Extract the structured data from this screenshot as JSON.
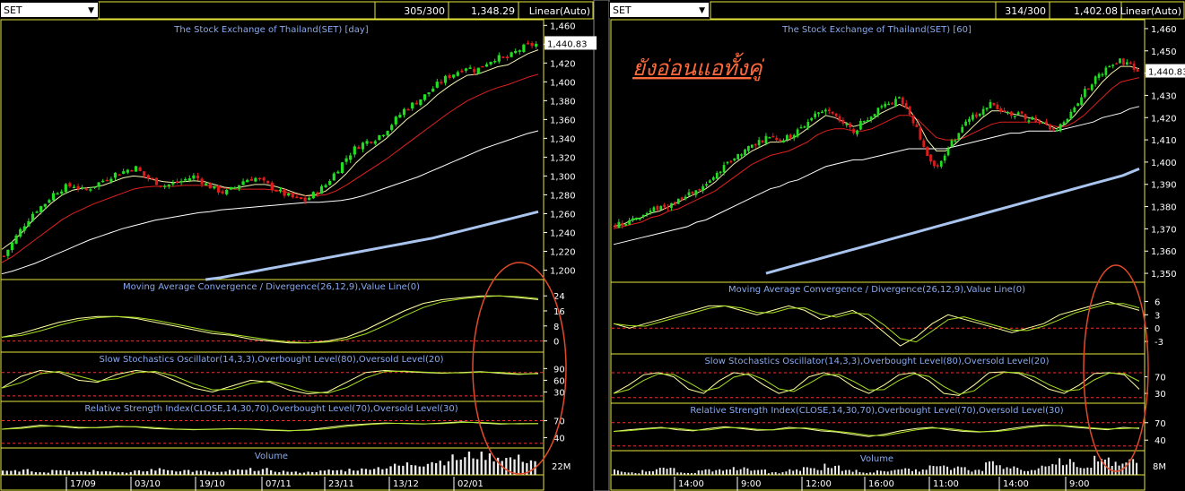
{
  "panels": [
    {
      "id": "day",
      "symbol": "SET",
      "count": "305/300",
      "price": "1,348.29",
      "scale": "Linear(Auto)",
      "title": "The Stock Exchange of Thailand(SET) [day]",
      "last_price_label": "1,440.83",
      "price_axis": {
        "ticks": [
          "1,460",
          "1,440",
          "1,420",
          "1,400",
          "1,380",
          "1,360",
          "1,340",
          "1,320",
          "1,300",
          "1,280",
          "1,260",
          "1,240",
          "1,220",
          "1,200"
        ],
        "ylim": [
          1190,
          1466
        ]
      },
      "indicators": {
        "macd": {
          "title": "Moving Average Convergence / Divergence(26,12,9),Value Line(0)",
          "ticks": [
            "24",
            "16",
            "8",
            "0"
          ]
        },
        "stoch": {
          "title": "Slow Stochastics Oscillator(14,3,3),Overbought Level(80),Oversold Level(20)",
          "ticks": [
            "90",
            "60",
            "30"
          ]
        },
        "rsi": {
          "title": "Relative Strength Index(CLOSE,14,30,70),Overbought Level(70),Oversold Level(30)",
          "ticks": [
            "70",
            "40"
          ]
        },
        "volume": {
          "title": "Volume",
          "ticks": [
            "22M"
          ]
        }
      },
      "date_ticks": [
        "17/09",
        "03/10",
        "19/10",
        "07/11",
        "23/11",
        "13/12",
        "02/01"
      ]
    },
    {
      "id": "60",
      "symbol": "SET",
      "count": "314/300",
      "price": "1,402.08",
      "scale": "Linear(Auto)",
      "title": "The Stock Exchange of Thailand(SET) [60]",
      "last_price_label": "1,440.83",
      "price_axis": {
        "ticks": [
          "1,460",
          "1,450",
          "1,440",
          "1,430",
          "1,420",
          "1,410",
          "1,400",
          "1,390",
          "1,380",
          "1,370",
          "1,360",
          "1,350"
        ],
        "ylim": [
          1346,
          1464
        ]
      },
      "indicators": {
        "macd": {
          "title": "Moving Average Convergence / Divergence(26,12,9),Value Line(0)",
          "ticks": [
            "6",
            "3",
            "0",
            "-3"
          ]
        },
        "stoch": {
          "title": "Slow Stochastics Oscillator(14,3,3),Overbought Level(80),Oversold Level(20)",
          "ticks": [
            "70",
            "30"
          ]
        },
        "rsi": {
          "title": "Relative Strength Index(CLOSE,14,30,70),Overbought Level(70),Oversold Level(30)",
          "ticks": [
            "70",
            "40"
          ]
        },
        "volume": {
          "title": "Volume",
          "ticks": [
            "8M"
          ]
        }
      },
      "date_ticks": [
        "14:00",
        "9:00",
        "12:00",
        "16:00",
        "11:00",
        "14:00",
        "9:00"
      ]
    }
  ],
  "annotation": {
    "text": "ยังอ่อนแอทั้งคู่",
    "color": "#ff6a3d"
  },
  "colors": {
    "up": "#22dd22",
    "down": "#e11b1b",
    "ema_fast": "#f2f2b0",
    "ema_mid": "#e02020",
    "ema_slow": "#ffffff",
    "ema_long": "#a9c4ee",
    "frame": "#e6e63c",
    "title": "#88a9ee",
    "circle": "#e04a2a"
  },
  "chart_data": [
    {
      "type": "candlestick",
      "title": "The Stock Exchange of Thailand(SET) [day]",
      "ylim": [
        1190,
        1466
      ],
      "x_ticks": [
        "17/09",
        "03/10",
        "19/10",
        "07/11",
        "23/11",
        "13/12",
        "02/01"
      ],
      "close_path": [
        1215,
        1232,
        1248,
        1262,
        1270,
        1282,
        1288,
        1290,
        1284,
        1290,
        1296,
        1302,
        1305,
        1310,
        1300,
        1294,
        1290,
        1292,
        1296,
        1300,
        1292,
        1286,
        1282,
        1288,
        1296,
        1298,
        1292,
        1286,
        1280,
        1276,
        1274,
        1282,
        1290,
        1304,
        1318,
        1330,
        1336,
        1340,
        1348,
        1360,
        1372,
        1378,
        1386,
        1396,
        1404,
        1410,
        1416,
        1412,
        1420,
        1426,
        1424,
        1432,
        1438,
        1440
      ],
      "ema_fast": [
        1222,
        1230,
        1240,
        1252,
        1262,
        1272,
        1280,
        1285,
        1287,
        1288,
        1290,
        1294,
        1298,
        1300,
        1299,
        1296,
        1294,
        1293,
        1294,
        1295,
        1294,
        1291,
        1288,
        1287,
        1289,
        1291,
        1291,
        1289,
        1286,
        1282,
        1279,
        1280,
        1284,
        1292,
        1302,
        1314,
        1324,
        1332,
        1340,
        1350,
        1360,
        1368,
        1376,
        1386,
        1394,
        1401,
        1407,
        1408,
        1412,
        1416,
        1418,
        1424,
        1430,
        1434
      ],
      "ema_mid": [
        1208,
        1214,
        1222,
        1230,
        1238,
        1246,
        1254,
        1260,
        1265,
        1270,
        1274,
        1278,
        1282,
        1286,
        1288,
        1289,
        1289,
        1289,
        1290,
        1290,
        1290,
        1289,
        1287,
        1286,
        1286,
        1286,
        1286,
        1285,
        1283,
        1281,
        1279,
        1279,
        1280,
        1284,
        1290,
        1297,
        1304,
        1311,
        1318,
        1326,
        1334,
        1342,
        1350,
        1358,
        1366,
        1373,
        1380,
        1385,
        1390,
        1394,
        1397,
        1401,
        1405,
        1408
      ],
      "ema_slow": [
        1196,
        1199,
        1203,
        1207,
        1212,
        1217,
        1222,
        1227,
        1232,
        1236,
        1240,
        1244,
        1247,
        1250,
        1253,
        1255,
        1257,
        1259,
        1261,
        1262,
        1264,
        1265,
        1266,
        1267,
        1268,
        1269,
        1270,
        1271,
        1272,
        1272,
        1273,
        1274,
        1276,
        1279,
        1283,
        1287,
        1291,
        1295,
        1299,
        1304,
        1309,
        1314,
        1319,
        1324,
        1329,
        1333,
        1337,
        1341,
        1345,
        1348
      ],
      "ema_long": [
        1190,
        1192,
        1195,
        1198,
        1201,
        1204,
        1207,
        1210,
        1213,
        1216,
        1219,
        1222,
        1225,
        1228,
        1231,
        1234,
        1238,
        1242,
        1246,
        1250,
        1254,
        1258,
        1262
      ],
      "macd": [
        2,
        4,
        7,
        10,
        12,
        13,
        13,
        12,
        10,
        8,
        6,
        4,
        3,
        1,
        0,
        -1,
        -1,
        0,
        2,
        6,
        11,
        16,
        20,
        22,
        23,
        24,
        24,
        23,
        22
      ],
      "stoch": [
        40,
        70,
        85,
        80,
        60,
        55,
        75,
        85,
        80,
        60,
        40,
        30,
        45,
        60,
        55,
        35,
        25,
        30,
        55,
        80,
        85,
        82,
        80,
        78,
        80,
        82,
        78,
        75,
        78
      ],
      "rsi": [
        55,
        58,
        62,
        60,
        57,
        58,
        60,
        59,
        56,
        55,
        54,
        55,
        56,
        55,
        53,
        52,
        54,
        58,
        62,
        64,
        66,
        65,
        64,
        66,
        68,
        66,
        64,
        65,
        65
      ],
      "volume": [
        4,
        5,
        3,
        6,
        4,
        5,
        3,
        4,
        6,
        5,
        4,
        3,
        5,
        6,
        4,
        3,
        4,
        5,
        6,
        8,
        10,
        12,
        15,
        18,
        22,
        20,
        18,
        16
      ]
    },
    {
      "type": "candlestick",
      "title": "The Stock Exchange of Thailand(SET) [60]",
      "ylim": [
        1346,
        1464
      ],
      "x_ticks": [
        "14:00",
        "9:00",
        "12:00",
        "16:00",
        "11:00",
        "14:00",
        "9:00"
      ],
      "close_path": [
        1372,
        1373,
        1375,
        1376,
        1378,
        1380,
        1381,
        1383,
        1385,
        1387,
        1390,
        1394,
        1398,
        1402,
        1405,
        1408,
        1410,
        1412,
        1410,
        1411,
        1414,
        1418,
        1422,
        1424,
        1420,
        1417,
        1414,
        1418,
        1422,
        1425,
        1427,
        1428,
        1424,
        1414,
        1402,
        1398,
        1404,
        1410,
        1416,
        1420,
        1424,
        1426,
        1424,
        1422,
        1421,
        1420,
        1418,
        1416,
        1414,
        1418,
        1424,
        1430,
        1436,
        1440,
        1444,
        1446,
        1444,
        1441
      ],
      "ema_fast": [
        1371,
        1372,
        1374,
        1375,
        1377,
        1378,
        1380,
        1382,
        1384,
        1386,
        1388,
        1391,
        1395,
        1399,
        1402,
        1405,
        1407,
        1409,
        1409,
        1410,
        1412,
        1415,
        1418,
        1421,
        1420,
        1418,
        1416,
        1417,
        1419,
        1422,
        1424,
        1426,
        1424,
        1418,
        1410,
        1405,
        1405,
        1408,
        1412,
        1416,
        1420,
        1423,
        1423,
        1422,
        1421,
        1420,
        1419,
        1417,
        1415,
        1417,
        1421,
        1426,
        1431,
        1436,
        1440,
        1443,
        1443,
        1442
      ],
      "ema_mid": [
        1370,
        1371,
        1372,
        1373,
        1375,
        1376,
        1378,
        1379,
        1381,
        1383,
        1385,
        1387,
        1390,
        1393,
        1396,
        1399,
        1401,
        1403,
        1404,
        1405,
        1407,
        1409,
        1412,
        1414,
        1415,
        1415,
        1414,
        1414,
        1415,
        1417,
        1419,
        1421,
        1421,
        1419,
        1415,
        1411,
        1410,
        1410,
        1411,
        1413,
        1415,
        1417,
        1418,
        1418,
        1418,
        1418,
        1418,
        1417,
        1416,
        1416,
        1418,
        1421,
        1425,
        1429,
        1433,
        1436,
        1437,
        1438
      ],
      "ema_slow": [
        1363,
        1364,
        1365,
        1366,
        1367,
        1368,
        1369,
        1370,
        1371,
        1373,
        1374,
        1376,
        1378,
        1380,
        1382,
        1384,
        1386,
        1388,
        1389,
        1391,
        1392,
        1394,
        1396,
        1398,
        1399,
        1400,
        1401,
        1401,
        1402,
        1403,
        1404,
        1405,
        1406,
        1406,
        1406,
        1406,
        1406,
        1407,
        1408,
        1409,
        1410,
        1411,
        1412,
        1413,
        1413,
        1414,
        1414,
        1414,
        1414,
        1415,
        1416,
        1417,
        1418,
        1420,
        1421,
        1422,
        1424,
        1425
      ],
      "ema_long": [
        1350,
        1352,
        1354,
        1356,
        1358,
        1360,
        1362,
        1364,
        1366,
        1368,
        1370,
        1372,
        1374,
        1376,
        1378,
        1380,
        1382,
        1384,
        1386,
        1388,
        1390,
        1392,
        1394,
        1397
      ],
      "macd": [
        1,
        0,
        1,
        2,
        3,
        4,
        5,
        5,
        4,
        3,
        4,
        5,
        4,
        2,
        3,
        4,
        2,
        -1,
        -4,
        -2,
        1,
        3,
        2,
        1,
        0,
        -1,
        0,
        1,
        3,
        4,
        5,
        6,
        5,
        4
      ],
      "stoch": [
        30,
        50,
        75,
        80,
        70,
        40,
        30,
        60,
        80,
        75,
        50,
        30,
        40,
        70,
        80,
        70,
        45,
        30,
        50,
        75,
        80,
        60,
        30,
        25,
        50,
        80,
        82,
        78,
        60,
        40,
        30,
        50,
        78,
        80,
        75,
        40
      ],
      "rsi": [
        55,
        58,
        60,
        62,
        58,
        56,
        60,
        63,
        60,
        57,
        58,
        62,
        60,
        56,
        54,
        50,
        46,
        50,
        56,
        60,
        62,
        58,
        55,
        54,
        56,
        60,
        64,
        66,
        65,
        62,
        60,
        58,
        62,
        60
      ],
      "volume": [
        2,
        1,
        2,
        3,
        1,
        2,
        2,
        3,
        2,
        1,
        2,
        3,
        4,
        2,
        1,
        2,
        3,
        2,
        4,
        3,
        2,
        5,
        3,
        2,
        4,
        6,
        3,
        8,
        5,
        6
      ]
    }
  ]
}
